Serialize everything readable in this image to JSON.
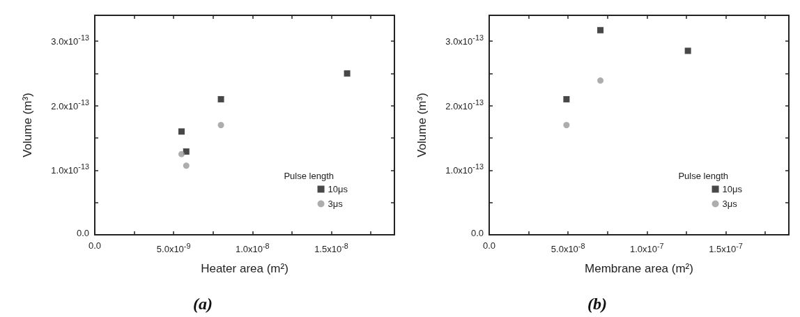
{
  "chart_data": [
    {
      "type": "scatter",
      "title": "(a)",
      "xlabel": "Heater area (m²)",
      "ylabel": "Volume (m³)",
      "legend_title": "Pulse length",
      "legend": "right",
      "grid": false,
      "xlim": [
        0,
        1.9e-08
      ],
      "xticks": [
        {
          "value": 0,
          "label": "0.0"
        },
        {
          "value": 2.5e-09,
          "label": null
        },
        {
          "value": 5e-09,
          "label": "5.0x10$^{-9}$"
        },
        {
          "value": 7.5e-09,
          "label": null
        },
        {
          "value": 1e-08,
          "label": "1.0x10$^{-8}$"
        },
        {
          "value": 1.25e-08,
          "label": null
        },
        {
          "value": 1.5e-08,
          "label": "1.5x10$^{-8}$"
        },
        {
          "value": 1.75e-08,
          "label": null
        }
      ],
      "ylim": [
        0,
        3.4e-13
      ],
      "yticks": [
        {
          "value": 0,
          "label": "0.0"
        },
        {
          "value": 5e-14,
          "label": null
        },
        {
          "value": 1e-13,
          "label": "1.0x10$^{-13}$"
        },
        {
          "value": 1.5e-13,
          "label": null
        },
        {
          "value": 2e-13,
          "label": "2.0x10$^{-13}$"
        },
        {
          "value": 2.5e-13,
          "label": null
        },
        {
          "value": 3e-13,
          "label": "3.0x10$^{-13}$"
        }
      ],
      "series": [
        {
          "name": "10μs",
          "color": "#1a1a1a",
          "marker": "square",
          "x": [
            5.5e-09,
            5.8e-09,
            8e-09,
            1.6e-08
          ],
          "values": [
            1.6e-13,
            1.29e-13,
            2.1e-13,
            2.5e-13
          ]
        },
        {
          "name": "3μs",
          "color": "#999999",
          "marker": "circle",
          "x": [
            5.5e-09,
            5.8e-09,
            8e-09
          ],
          "values": [
            1.25e-13,
            1.07e-13,
            1.7e-13
          ]
        }
      ]
    },
    {
      "type": "scatter",
      "title": "(b)",
      "xlabel": "Membrane area (m²)",
      "ylabel": "Volume (m³)",
      "legend_title": "Pulse length",
      "legend": "right",
      "grid": false,
      "xlim": [
        0,
        1.9e-07
      ],
      "xticks": [
        {
          "value": 0,
          "label": "0.0"
        },
        {
          "value": 2.5e-08,
          "label": null
        },
        {
          "value": 5e-08,
          "label": "5.0x10$^{-8}$"
        },
        {
          "value": 7.5e-08,
          "label": null
        },
        {
          "value": 1e-07,
          "label": "1.0x10$^{-7}$"
        },
        {
          "value": 1.25e-07,
          "label": null
        },
        {
          "value": 1.5e-07,
          "label": "1.5x10$^{-7}$"
        },
        {
          "value": 1.75e-07,
          "label": null
        }
      ],
      "ylim": [
        0,
        3.4e-13
      ],
      "yticks": [
        {
          "value": 0,
          "label": "0.0"
        },
        {
          "value": 5e-14,
          "label": null
        },
        {
          "value": 1e-13,
          "label": "1.0x10$^{-13}$"
        },
        {
          "value": 1.5e-13,
          "label": null
        },
        {
          "value": 2e-13,
          "label": "2.0x10$^{-13}$"
        },
        {
          "value": 2.5e-13,
          "label": null
        },
        {
          "value": 3e-13,
          "label": "3.0x10$^{-13}$"
        }
      ],
      "series": [
        {
          "name": "10μs",
          "color": "#1a1a1a",
          "marker": "square",
          "x": [
            4.9e-08,
            7.05e-08,
            1.26e-07
          ],
          "values": [
            2.1e-13,
            3.17e-13,
            2.85e-13
          ]
        },
        {
          "name": "3μs",
          "color": "#999999",
          "marker": "circle",
          "x": [
            4.9e-08,
            7.05e-08
          ],
          "values": [
            1.7e-13,
            2.39e-13
          ]
        }
      ]
    }
  ]
}
